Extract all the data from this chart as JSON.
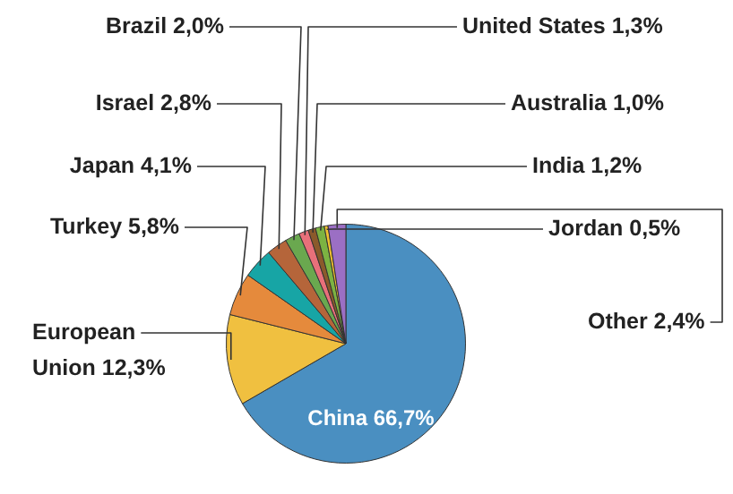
{
  "chart_data": {
    "type": "pie",
    "categories": [
      "China",
      "European Union",
      "Turkey",
      "Japan",
      "Israel",
      "Brazil",
      "United States",
      "Australia",
      "India",
      "Jordan",
      "Other"
    ],
    "values": [
      66.7,
      12.3,
      5.8,
      4.1,
      2.8,
      2.0,
      1.3,
      1.0,
      1.2,
      0.5,
      2.4
    ],
    "value_labels": [
      "66,7%",
      "12,3%",
      "5,8%",
      "4,1%",
      "2,8%",
      "2,0%",
      "1,3%",
      "1,0%",
      "1,2%",
      "0,5%",
      "2,4%"
    ],
    "colors": [
      "#4a8fc1",
      "#f0c040",
      "#e58a3c",
      "#17a5a5",
      "#b5653a",
      "#6aa84f",
      "#e8707a",
      "#8b5a2b",
      "#7cb342",
      "#f0c030",
      "#9b6fc4"
    ],
    "legend": false
  }
}
